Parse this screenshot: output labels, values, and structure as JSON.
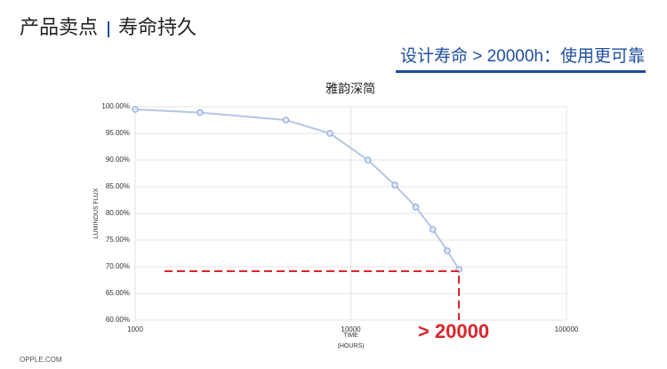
{
  "header": {
    "title": "产品卖点",
    "subtitle": "寿命持久",
    "tagline": "设计寿命 > 20000h：使用更可靠"
  },
  "footer": "OPPLE.COM",
  "chart_data": {
    "type": "line",
    "title": "雅韵深简",
    "ylabel": "LUMINOUS FLUX",
    "xlabel": [
      "TIME",
      "(HOURS)"
    ],
    "x": [
      1000,
      2000,
      5000,
      8000,
      12000,
      16000,
      20000,
      24000,
      28000,
      31700
    ],
    "values": [
      99.5,
      98.9,
      97.5,
      95.0,
      90.0,
      85.3,
      81.2,
      77.0,
      73.0,
      69.5
    ],
    "color": "#b4c6e7",
    "marker_color": "#8faadc",
    "xscale": "log",
    "xlim": [
      1000,
      100000
    ],
    "xticks": [
      1000,
      10000,
      100000
    ],
    "ylim": [
      60,
      100
    ],
    "yticks": [
      {
        "value": 60,
        "label": "60.00%"
      },
      {
        "value": 65,
        "label": "65.00%"
      },
      {
        "value": 70,
        "label": "70.00%"
      },
      {
        "value": 75,
        "label": "75.00%"
      },
      {
        "value": 80,
        "label": "80.00%"
      },
      {
        "value": 85,
        "label": "85.00%"
      },
      {
        "value": 90,
        "label": "90.00%"
      },
      {
        "value": 95,
        "label": "95.00%"
      },
      {
        "value": 100,
        "label": "100.00%"
      }
    ],
    "grid": true,
    "annotation": "> 20000",
    "annotation_color": "#d9262b"
  }
}
